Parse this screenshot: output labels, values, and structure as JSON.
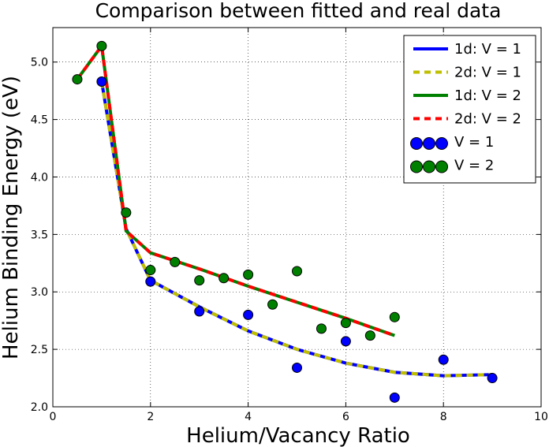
{
  "chart_data": {
    "type": "line",
    "title": "Comparison between fitted and real data",
    "xlabel": "Helium/Vacancy Ratio",
    "ylabel": "Helium Binding Energy (eV)",
    "xlim": [
      0,
      10
    ],
    "ylim": [
      2.0,
      5.3
    ],
    "xticks": [
      0,
      2,
      4,
      6,
      8,
      10
    ],
    "xtick_labels": [
      "0",
      "2",
      "4",
      "6",
      "8",
      "10"
    ],
    "yticks": [
      2.0,
      2.5,
      3.0,
      3.5,
      4.0,
      4.5,
      5.0
    ],
    "ytick_labels": [
      "2.0",
      "2.5",
      "3.0",
      "3.5",
      "4.0",
      "4.5",
      "5.0"
    ],
    "grid": true,
    "legend_position": "top-right",
    "series": [
      {
        "name": "1d: V = 1",
        "kind": "line",
        "color": "#0000ff",
        "dash": "solid",
        "x": [
          1,
          1.5,
          2,
          3,
          4,
          5,
          6,
          7,
          8,
          9
        ],
        "y": [
          4.83,
          3.55,
          3.1,
          2.87,
          2.66,
          2.5,
          2.38,
          2.3,
          2.27,
          2.28
        ]
      },
      {
        "name": "2d: V = 1",
        "kind": "line",
        "color": "#bfbf00",
        "dash": "dashed",
        "x": [
          1,
          1.5,
          2,
          3,
          4,
          5,
          6,
          7,
          8,
          9
        ],
        "y": [
          4.83,
          3.55,
          3.1,
          2.87,
          2.66,
          2.5,
          2.38,
          2.3,
          2.27,
          2.28
        ]
      },
      {
        "name": "1d: V = 2",
        "kind": "line",
        "color": "#008000",
        "dash": "solid",
        "x": [
          0.5,
          1,
          1.5,
          2,
          3,
          4,
          5,
          6,
          7
        ],
        "y": [
          4.85,
          5.14,
          3.53,
          3.34,
          3.2,
          3.05,
          2.91,
          2.77,
          2.62
        ]
      },
      {
        "name": "2d: V = 2",
        "kind": "line",
        "color": "#ff0000",
        "dash": "dashed",
        "x": [
          0.5,
          1,
          1.5,
          2,
          3,
          4,
          5,
          6,
          7
        ],
        "y": [
          4.85,
          5.14,
          3.53,
          3.34,
          3.2,
          3.05,
          2.91,
          2.77,
          2.62
        ]
      },
      {
        "name": "V = 1",
        "kind": "scatter",
        "color": "#0000ff",
        "x": [
          1,
          2,
          3,
          4,
          5,
          6,
          7,
          8,
          9
        ],
        "y": [
          4.83,
          3.09,
          2.83,
          2.8,
          2.34,
          2.57,
          2.08,
          2.41,
          2.25
        ]
      },
      {
        "name": "V = 2",
        "kind": "scatter",
        "color": "#008000",
        "x": [
          0.5,
          1,
          1.5,
          2,
          2.5,
          3,
          3.5,
          4,
          4.5,
          5,
          5.5,
          6,
          6.5,
          7
        ],
        "y": [
          4.85,
          5.14,
          3.69,
          3.19,
          3.26,
          3.1,
          3.12,
          3.15,
          2.89,
          3.18,
          2.68,
          2.73,
          2.62,
          2.78
        ]
      }
    ]
  }
}
